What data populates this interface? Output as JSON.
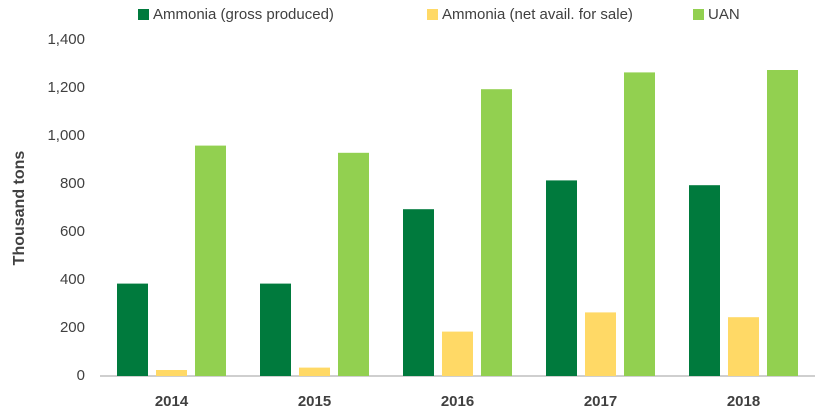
{
  "chart_data": {
    "type": "bar",
    "y_label": "Thousand tons",
    "categories": [
      "2014",
      "2015",
      "2016",
      "2017",
      "2018"
    ],
    "series": [
      {
        "name": "Ammonia (gross produced)",
        "color": "#007a3d",
        "values": [
          385,
          385,
          695,
          815,
          795
        ]
      },
      {
        "name": "Ammonia (net avail. for sale)",
        "color": "#ffd966",
        "values": [
          25,
          35,
          185,
          265,
          245
        ]
      },
      {
        "name": "UAN",
        "color": "#92d050",
        "values": [
          960,
          930,
          1195,
          1265,
          1275
        ]
      }
    ],
    "ylim": [
      0,
      1400
    ],
    "yticks": [
      0,
      200,
      400,
      600,
      800,
      {
        "value": 1000,
        "label": "1,000"
      },
      {
        "value": 1200,
        "label": "1,200"
      },
      {
        "value": 1400,
        "label": "1,400"
      }
    ],
    "grid": false,
    "legend": "top"
  }
}
